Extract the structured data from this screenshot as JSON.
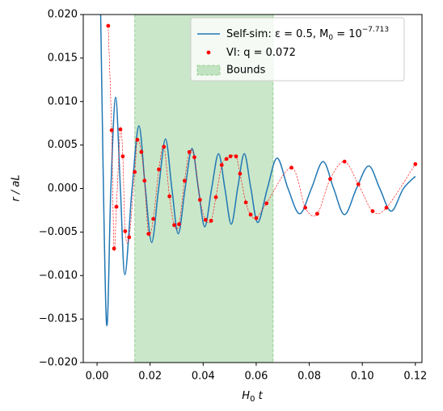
{
  "chart_data": {
    "type": "line",
    "xlabel": "H",
    "xlabel_sub": "0",
    "xlabel_tail": " t",
    "ylabel": "r / aL",
    "xlim": [
      -0.0052,
      0.1225
    ],
    "ylim": [
      -0.02,
      0.02
    ],
    "xticks": [
      {
        "value": 0,
        "label": "0.00"
      },
      {
        "value": 0.02,
        "label": "0.02"
      },
      {
        "value": 0.04,
        "label": "0.04"
      },
      {
        "value": 0.06,
        "label": "0.06"
      },
      {
        "value": 0.08,
        "label": "0.08"
      },
      {
        "value": 0.1,
        "label": "0.10"
      },
      {
        "value": 0.12,
        "label": "0.12"
      }
    ],
    "yticks": [
      {
        "value": -0.02,
        "label": "−0.020"
      },
      {
        "value": -0.015,
        "label": "−0.015"
      },
      {
        "value": -0.01,
        "label": "−0.010"
      },
      {
        "value": -0.005,
        "label": "−0.005"
      },
      {
        "value": 0,
        "label": "0.000"
      },
      {
        "value": 0.005,
        "label": "0.005"
      },
      {
        "value": 0.01,
        "label": "0.010"
      },
      {
        "value": 0.015,
        "label": "0.015"
      },
      {
        "value": 0.02,
        "label": "0.020"
      }
    ],
    "grid": false,
    "legend": "upper right",
    "series": [
      {
        "name": "Self-sim: ε = 0.5, M",
        "name_sub": "0",
        "name_tail": " = 10",
        "name_sup": "−7.713",
        "color": "#1f77b4",
        "style": "line",
        "x": [
          0.0013,
          0.0035,
          0.0052,
          0.007,
          0.0088,
          0.0105,
          0.0132,
          0.0158,
          0.0182,
          0.0206,
          0.0232,
          0.0258,
          0.0282,
          0.0306,
          0.0332,
          0.0358,
          0.0382,
          0.0406,
          0.0432,
          0.0458,
          0.0482,
          0.0506,
          0.053,
          0.0555,
          0.058,
          0.0606,
          0.0642,
          0.0679,
          0.072,
          0.0764,
          0.0808,
          0.0852,
          0.0892,
          0.0933,
          0.0978,
          0.1024,
          0.1066,
          0.1109,
          0.1155,
          0.12
        ],
        "values": [
          0.021,
          -0.0152,
          0,
          0.0105,
          0,
          -0.0099,
          0,
          0.0072,
          0,
          -0.0062,
          0,
          0.0057,
          0,
          -0.0052,
          0,
          0.0046,
          0,
          -0.0044,
          0,
          0.004,
          0,
          -0.0041,
          0,
          0.004,
          0,
          -0.0039,
          0,
          0.0035,
          0,
          -0.0029,
          0,
          0.0031,
          0,
          -0.003,
          0,
          0.0026,
          0,
          -0.0026,
          0,
          0.0014
        ]
      },
      {
        "name": "VI: q = 0.072",
        "color": "#ff0000",
        "style": "scatter-dashed",
        "x": [
          0.0042,
          0.0055,
          0.0064,
          0.0073,
          0.0088,
          0.0097,
          0.0106,
          0.0121,
          0.0142,
          0.0152,
          0.0167,
          0.0179,
          0.0194,
          0.0212,
          0.0233,
          0.0252,
          0.0273,
          0.0291,
          0.0309,
          0.033,
          0.0348,
          0.0367,
          0.0388,
          0.0409,
          0.043,
          0.0448,
          0.047,
          0.0488,
          0.0503,
          0.0524,
          0.0539,
          0.0561,
          0.0579,
          0.06,
          0.0639,
          0.0733,
          0.0785,
          0.083,
          0.0879,
          0.0933,
          0.0985,
          0.1039,
          0.1091,
          0.12
        ],
        "values": [
          0.0187,
          0.0067,
          -0.0069,
          -0.0021,
          0.0068,
          0.0037,
          -0.0049,
          -0.0056,
          0.0019,
          0.0056,
          0.0042,
          0.0009,
          -0.0052,
          -0.0035,
          0.0022,
          0.0048,
          -0.0009,
          -0.0042,
          -0.0041,
          0.0009,
          0.0042,
          0.0036,
          -0.0013,
          -0.0036,
          -0.0037,
          -0.001,
          0.0027,
          0.0034,
          0.0037,
          0.0037,
          0.0017,
          -0.0016,
          -0.003,
          -0.0034,
          -0.0017,
          0.0024,
          -0.0022,
          -0.0029,
          0.0011,
          0.0031,
          0.0005,
          -0.0026,
          -0.0022,
          0.0028
        ]
      }
    ],
    "band": {
      "name": "Bounds",
      "color": "#2ca02c",
      "range": [
        0.0142,
        0.0664
      ]
    }
  }
}
